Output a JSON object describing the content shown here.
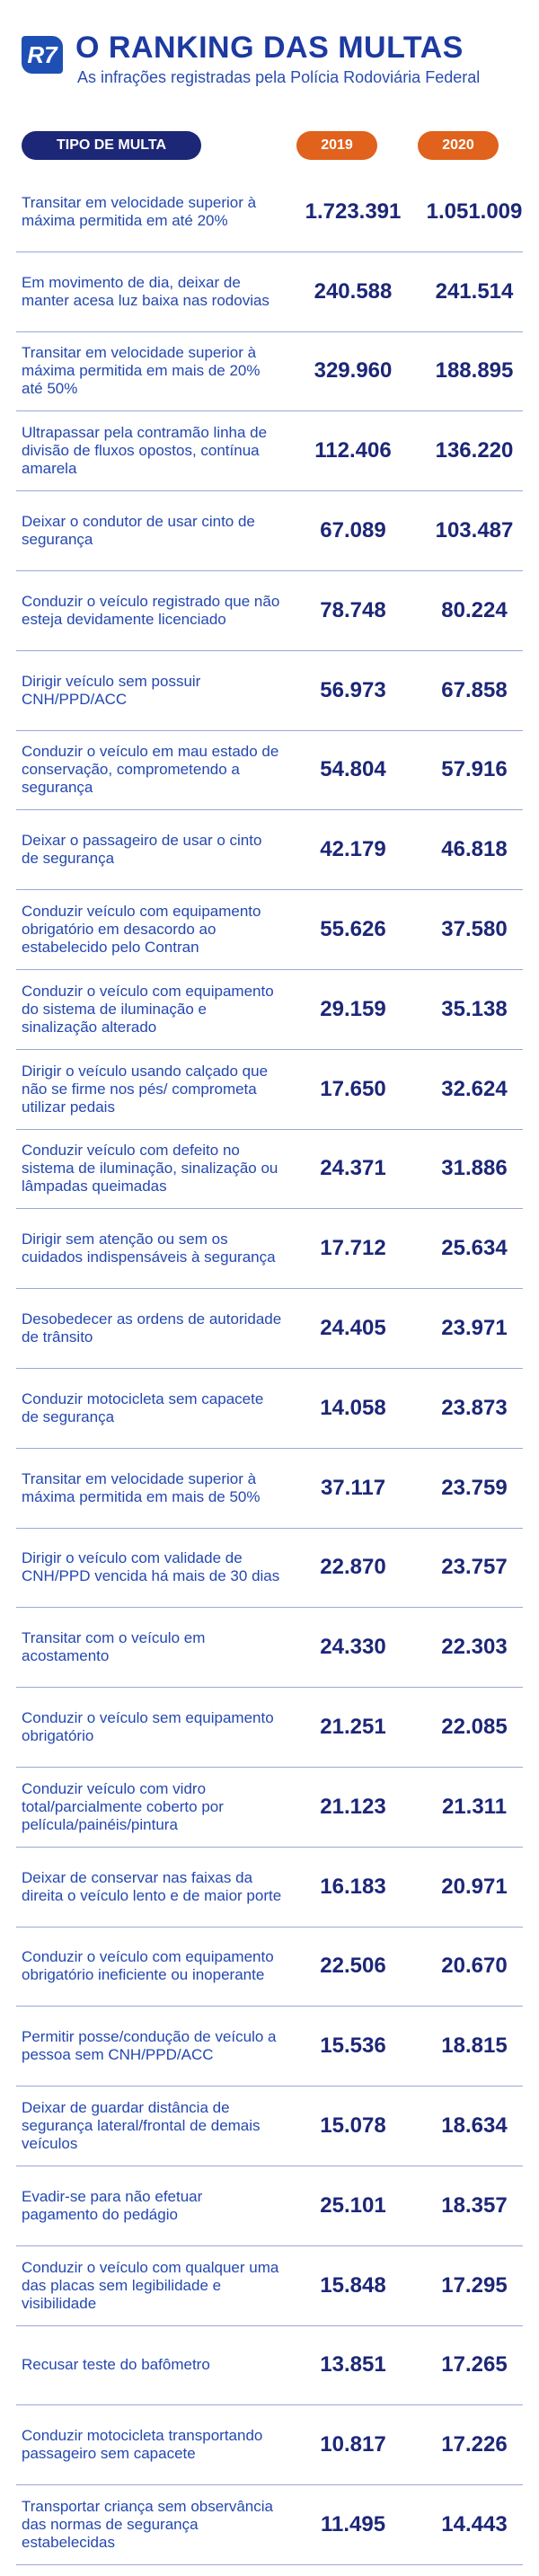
{
  "header": {
    "logo": "R7",
    "title": "O RANKING DAS MULTAS",
    "subtitle": "As infrações registradas pela Polícia Rodoviária Federal"
  },
  "table": {
    "columns": [
      "TIPO DE MULTA",
      "2019",
      "2020"
    ],
    "rows": [
      [
        "Transitar em velocidade superior à máxima permitida em até 20%",
        "1.723.391",
        "1.051.009"
      ],
      [
        "Em movimento de dia, deixar de manter acesa luz baixa nas rodovias",
        "240.588",
        "241.514"
      ],
      [
        "Transitar em velocidade superior à máxima permitida em mais de 20% até 50%",
        "329.960",
        "188.895"
      ],
      [
        "Ultrapassar pela contramão linha de divisão de fluxos opostos, contínua amarela",
        "112.406",
        "136.220"
      ],
      [
        "Deixar o condutor de usar cinto de segurança",
        "67.089",
        "103.487"
      ],
      [
        "Conduzir o veículo registrado que não esteja devidamente licenciado",
        "78.748",
        "80.224"
      ],
      [
        "Dirigir veículo sem possuir CNH/PPD/ACC",
        "56.973",
        "67.858"
      ],
      [
        "Conduzir o veículo em mau estado de conservação, comprometendo a segurança",
        "54.804",
        "57.916"
      ],
      [
        "Deixar o passageiro de usar o cinto de segurança",
        "42.179",
        "46.818"
      ],
      [
        "Conduzir veículo com equipamento obrigatório em desacordo ao estabelecido pelo Contran",
        "55.626",
        "37.580"
      ],
      [
        "Conduzir o veículo com equipamento do sistema de iluminação e sinalização alterado",
        "29.159",
        "35.138"
      ],
      [
        "Dirigir o veículo usando calçado que não se firme nos pés/ comprometa utilizar pedais",
        "17.650",
        "32.624"
      ],
      [
        "Conduzir veículo com defeito no sistema de iluminação, sinalização ou lâmpadas queimadas",
        "24.371",
        "31.886"
      ],
      [
        "Dirigir sem atenção ou sem os cuidados indispensáveis à segurança",
        "17.712",
        "25.634"
      ],
      [
        "Desobedecer as ordens de autoridade de trânsito",
        "24.405",
        "23.971"
      ],
      [
        "Conduzir motocicleta sem capacete de segurança",
        "14.058",
        "23.873"
      ],
      [
        "Transitar em velocidade superior à máxima permitida em mais de 50%",
        "37.117",
        "23.759"
      ],
      [
        "Dirigir o veículo com validade de CNH/PPD vencida há mais de 30 dias",
        "22.870",
        "23.757"
      ],
      [
        "Transitar com o veículo em acostamento",
        "24.330",
        "22.303"
      ],
      [
        "Conduzir o veículo sem equipamento obrigatório",
        "21.251",
        "22.085"
      ],
      [
        "Conduzir veículo com vidro total/parcialmente coberto por película/painéis/pintura",
        "21.123",
        "21.311"
      ],
      [
        "Deixar de conservar nas faixas da direita o veículo lento e de maior porte",
        "16.183",
        "20.971"
      ],
      [
        "Conduzir o veículo com equipamento obrigatório ineficiente ou inoperante",
        "22.506",
        "20.670"
      ],
      [
        "Permitir posse/condução de veículo a pessoa sem CNH/PPD/ACC",
        "15.536",
        "18.815"
      ],
      [
        "Deixar de guardar distância de segurança lateral/frontal de demais veículos",
        "15.078",
        "18.634"
      ],
      [
        "Evadir-se para não efetuar pagamento do pedágio",
        "25.101",
        "18.357"
      ],
      [
        "Conduzir o veículo com qualquer uma das placas sem legibilidade e visibilidade",
        "15.848",
        "17.295"
      ],
      [
        "Recusar teste do bafômetro",
        "13.851",
        "17.265"
      ],
      [
        "Conduzir motocicleta transportando passageiro sem capacete",
        "10.817",
        "17.226"
      ],
      [
        "Transportar criança sem observância das normas de segurança estabelecidas",
        "11.495",
        "14.443"
      ]
    ]
  }
}
